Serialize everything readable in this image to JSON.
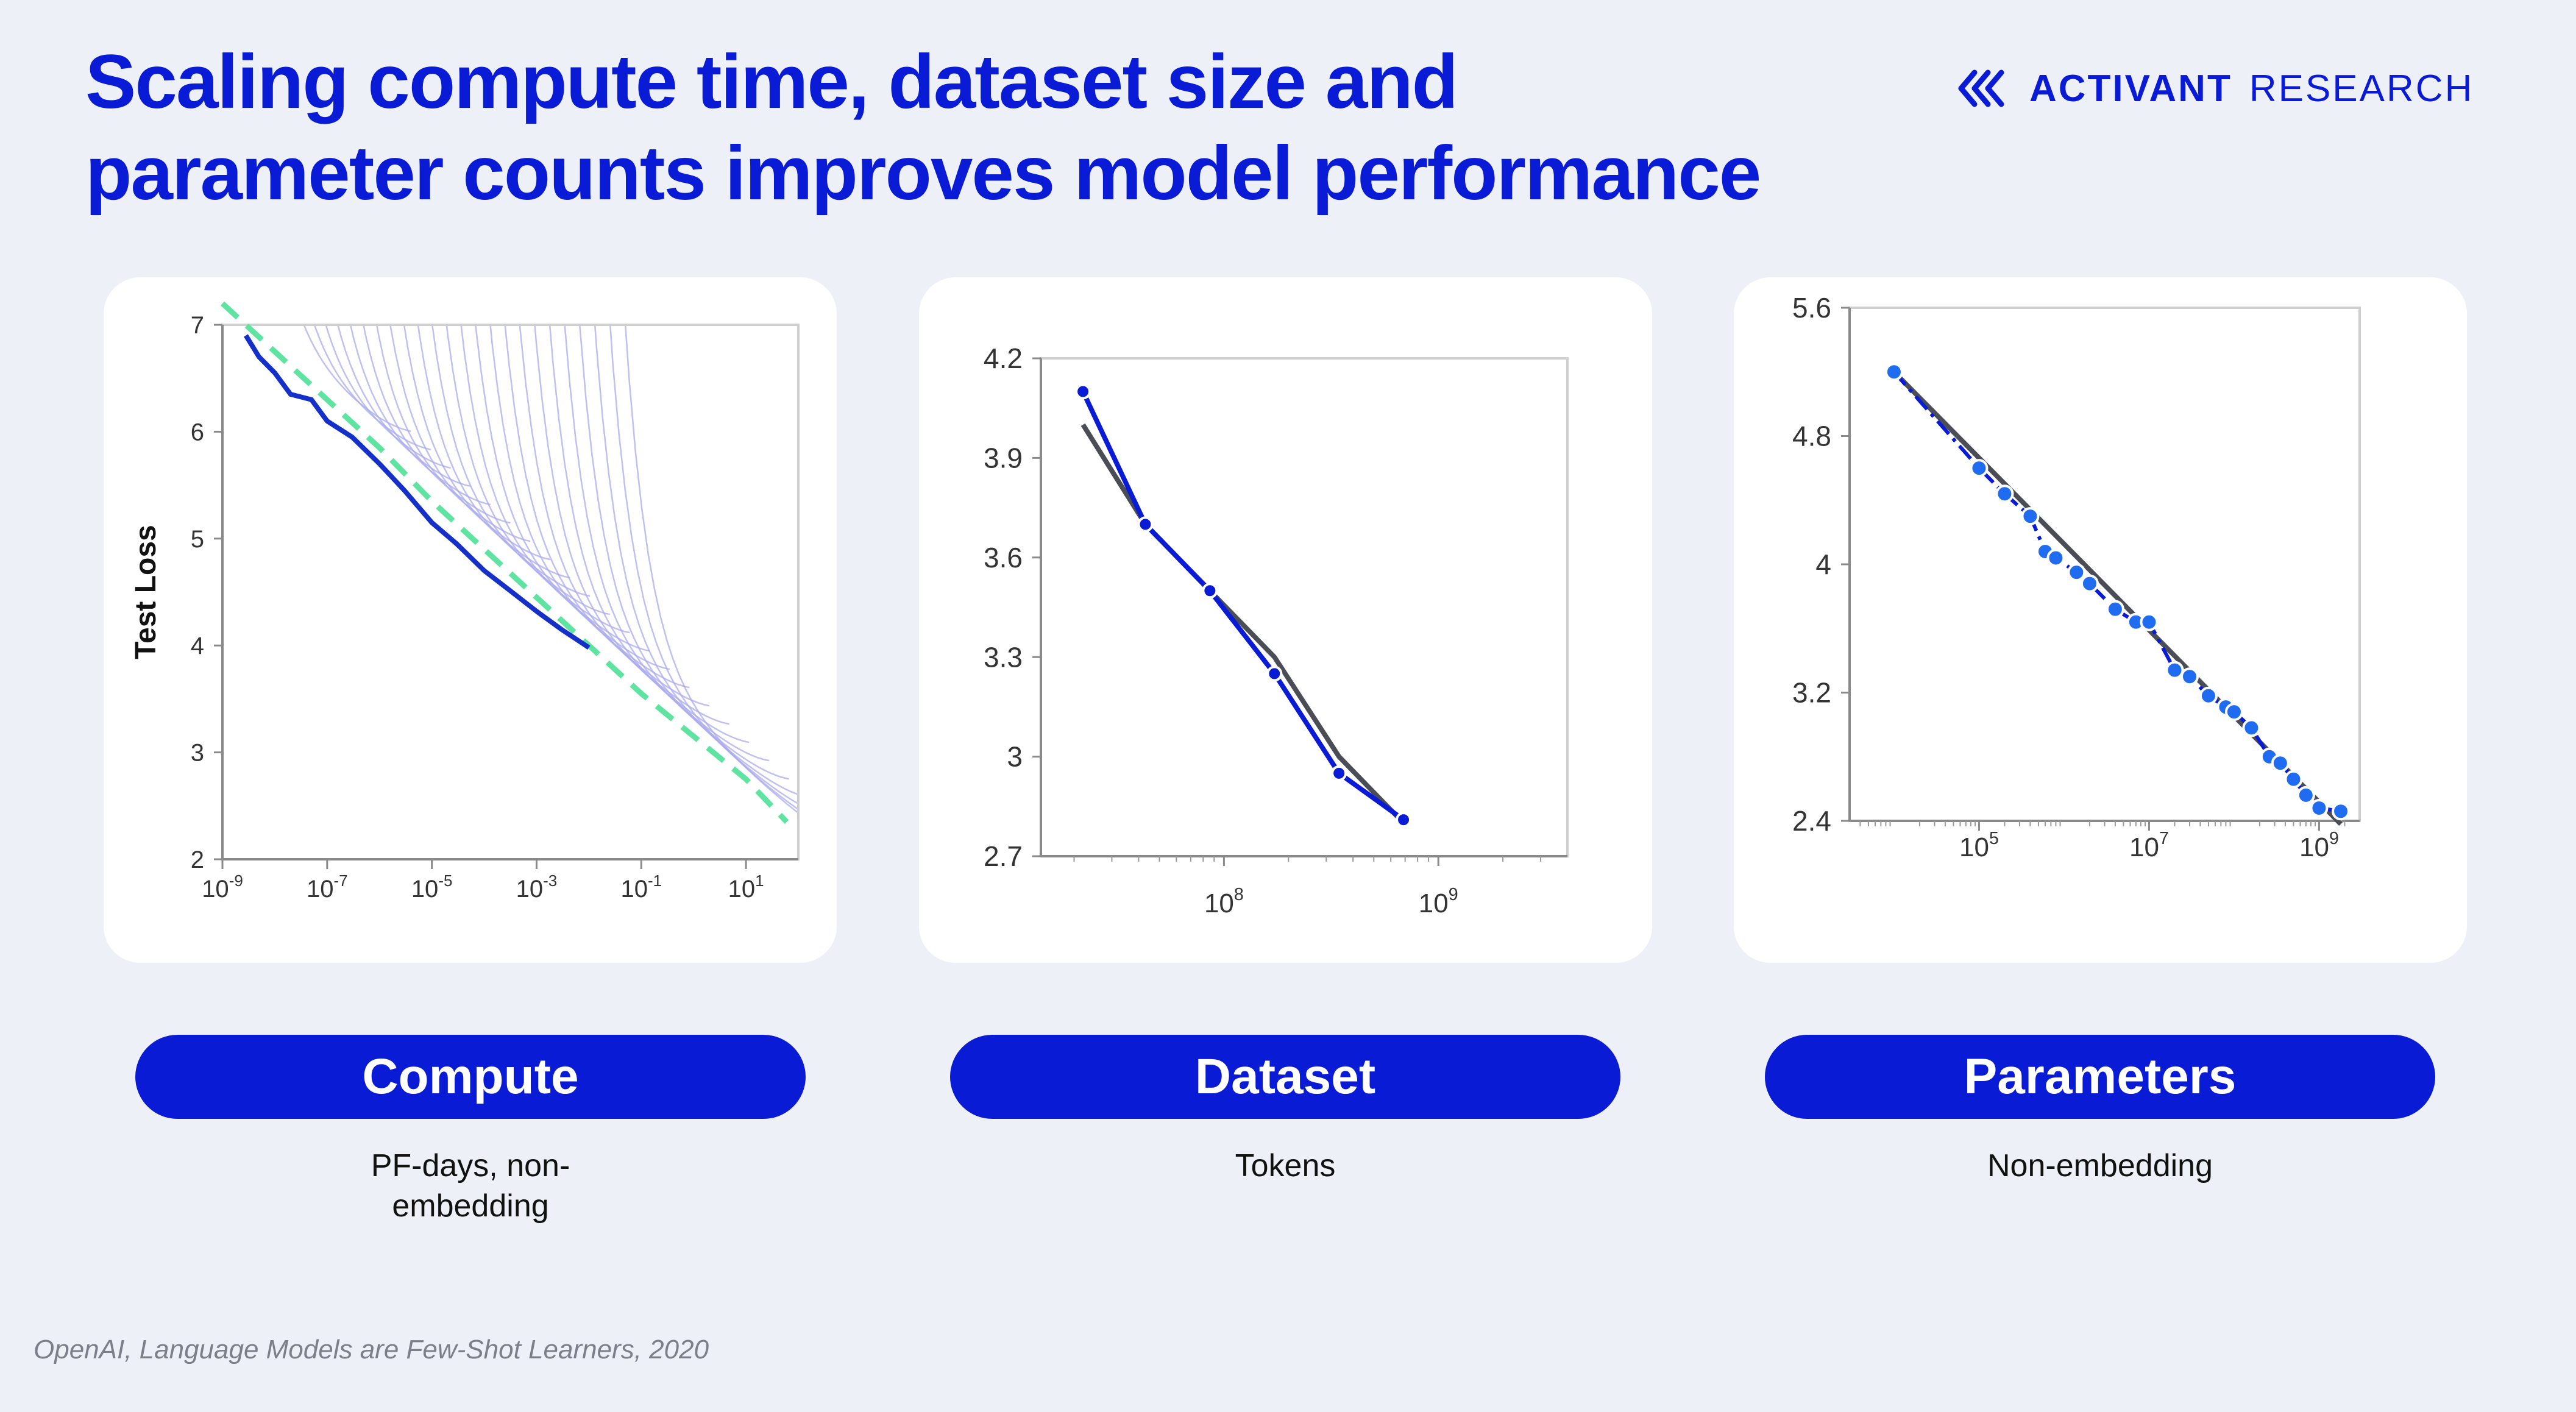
{
  "title": {
    "line1": "Scaling compute time, dataset size and",
    "line2": "parameter counts improves model performance"
  },
  "brand": {
    "name_bold": "ACTIVANT",
    "name_light": "RESEARCH",
    "icon": "activant-chevron-logo"
  },
  "source": "OpenAI, Language Models are Few-Shot Learners, 2020",
  "colors": {
    "accent": "#0a1bd6",
    "fit_dark": "#4a4d55",
    "frontier_green": "#5fe3a1",
    "curves_lavender": "#a9a9ec",
    "points_blue": "#1f6cf0"
  },
  "panels": [
    {
      "label": "Compute",
      "caption": "PF-days, non-embedding"
    },
    {
      "label": "Dataset",
      "caption": "Tokens"
    },
    {
      "label": "Parameters",
      "caption": "Non-embedding"
    }
  ],
  "chart_data": [
    {
      "type": "line",
      "title": "",
      "xlabel": "",
      "ylabel": "Test Loss",
      "xscale": "log",
      "xlim": [
        1e-09,
        100.0
      ],
      "ylim": [
        2,
        7
      ],
      "x_ticks": [
        {
          "base": "10",
          "exp": "-9"
        },
        {
          "base": "10",
          "exp": "-7"
        },
        {
          "base": "10",
          "exp": "-5"
        },
        {
          "base": "10",
          "exp": "-3"
        },
        {
          "base": "10",
          "exp": "-1"
        },
        {
          "base": "10",
          "exp": "1"
        }
      ],
      "y_ticks": [
        "7",
        "6",
        "5",
        "4",
        "3",
        "2"
      ],
      "grid": false,
      "series": [
        {
          "role": "frontier",
          "x": [
            2.8e-09,
            5e-09,
            1e-08,
            2e-08,
            5e-08,
            1e-07,
            3e-07,
            1e-06,
            3e-06,
            1e-05,
            3e-05,
            0.0001,
            0.0003,
            0.001,
            0.003,
            0.01
          ],
          "y": [
            6.9,
            6.7,
            6.55,
            6.35,
            6.3,
            6.1,
            5.95,
            5.7,
            5.45,
            5.15,
            4.95,
            4.7,
            4.52,
            4.32,
            4.15,
            3.98
          ]
        },
        {
          "role": "power-law-fit",
          "x": [
            1e-09,
            1e-08,
            1e-07,
            1e-06,
            1e-05,
            0.0001,
            0.001,
            0.01,
            0.1,
            1,
            10,
            60
          ],
          "y": [
            7.2,
            6.75,
            6.3,
            5.85,
            5.35,
            4.9,
            4.45,
            4.0,
            3.55,
            3.15,
            2.75,
            2.35
          ]
        }
      ],
      "learning_curves": 24
    },
    {
      "type": "line",
      "title": "",
      "xlabel": "",
      "ylabel": "",
      "xscale": "log",
      "xlim": [
        14000000.0,
        4000000000.0
      ],
      "ylim": [
        2.7,
        4.2
      ],
      "x_ticks": [
        {
          "base": "10",
          "exp": "8"
        },
        {
          "base": "10",
          "exp": "9"
        }
      ],
      "y_ticks": [
        "4.2",
        "3.9",
        "3.6",
        "3.3",
        "3",
        "2.7"
      ],
      "grid": false,
      "series": [
        {
          "role": "data",
          "x": [
            22000000.0,
            43000000.0,
            86000000.0,
            172000000.0,
            344000000.0,
            688000000.0
          ],
          "y": [
            4.1,
            3.7,
            3.5,
            3.25,
            2.95,
            2.81
          ]
        },
        {
          "role": "power-law-fit",
          "x": [
            22000000.0,
            43000000.0,
            86000000.0,
            172000000.0,
            344000000.0,
            688000000.0
          ],
          "y": [
            4.0,
            3.7,
            3.5,
            3.3,
            3.0,
            2.8
          ]
        }
      ]
    },
    {
      "type": "line",
      "title": "",
      "xlabel": "",
      "ylabel": "",
      "xscale": "log",
      "xlim": [
        3000,
        3000000000.0
      ],
      "ylim": [
        2.4,
        5.6
      ],
      "x_ticks": [
        {
          "base": "10",
          "exp": "5"
        },
        {
          "base": "10",
          "exp": "7"
        },
        {
          "base": "10",
          "exp": "9"
        }
      ],
      "y_ticks": [
        "5.6",
        "4.8",
        "4",
        "3.2",
        "2.4"
      ],
      "grid": false,
      "series": [
        {
          "role": "data",
          "x": [
            10000.0,
            100000.0,
            200000.0,
            400000.0,
            600000.0,
            800000.0,
            1400000.0,
            2000000.0,
            4000000.0,
            7000000.0,
            10000000.0,
            20000000.0,
            30000000.0,
            50000000.0,
            80000000.0,
            100000000.0,
            160000000.0,
            260000000.0,
            350000000.0,
            500000000.0,
            700000000.0,
            1000000000.0,
            1800000000.0
          ],
          "y": [
            5.2,
            4.6,
            4.44,
            4.3,
            4.08,
            4.04,
            3.95,
            3.88,
            3.72,
            3.64,
            3.64,
            3.34,
            3.3,
            3.18,
            3.11,
            3.08,
            2.98,
            2.8,
            2.76,
            2.66,
            2.56,
            2.48,
            2.46
          ]
        },
        {
          "role": "power-law-fit",
          "x": [
            10000.0,
            1800000000.0
          ],
          "y": [
            5.2,
            2.38
          ]
        }
      ]
    }
  ]
}
